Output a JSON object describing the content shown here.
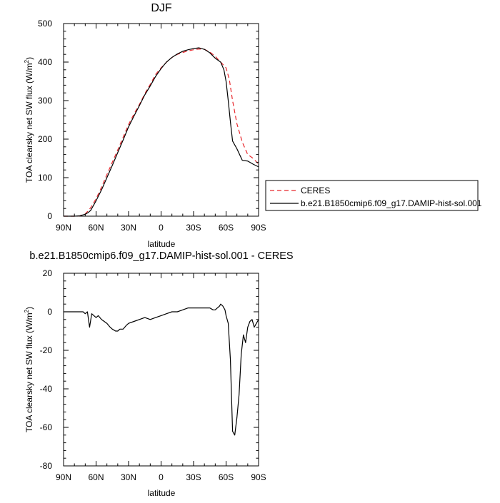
{
  "chart_data": [
    {
      "type": "line",
      "title": "DJF",
      "xlabel": "latitude",
      "ylabel": "TOA clearsky net SW flux (W/m",
      "ylabel_sup": "2",
      "ylabel_close": ")",
      "xlim": [
        -90,
        90
      ],
      "ylim": [
        0,
        500
      ],
      "x_ticks": [
        -90,
        -60,
        -30,
        0,
        30,
        60,
        90
      ],
      "x_tick_labels": [
        "90N",
        "60N",
        "30N",
        "0",
        "30S",
        "60S",
        "90S"
      ],
      "y_ticks": [
        0,
        100,
        200,
        300,
        400,
        500
      ],
      "y_tick_labels": [
        "0",
        "100",
        "200",
        "300",
        "400",
        "500"
      ],
      "grid": false,
      "legend_position": "right",
      "series": [
        {
          "name": "CERES",
          "color": "#e8262b",
          "dash": true,
          "x": [
            -90,
            -80,
            -75,
            -70,
            -67,
            -65,
            -60,
            -55,
            -50,
            -45,
            -40,
            -35,
            -30,
            -25,
            -20,
            -15,
            -10,
            -5,
            0,
            5,
            10,
            15,
            20,
            25,
            30,
            35,
            40,
            45,
            50,
            55,
            60,
            63,
            66,
            70,
            75,
            80,
            85,
            90
          ],
          "y": [
            0,
            0,
            1,
            6,
            15,
            22,
            45,
            75,
            108,
            140,
            172,
            205,
            238,
            265,
            290,
            318,
            342,
            368,
            385,
            400,
            412,
            420,
            425,
            429,
            432,
            434,
            433,
            426,
            415,
            400,
            385,
            355,
            300,
            240,
            192,
            160,
            150,
            135
          ]
        },
        {
          "name": "b.e21.B1850cmip6.f09_g17.DAMIP-hist-sol.001",
          "color": "#000000",
          "dash": false,
          "x": [
            -90,
            -80,
            -75,
            -70,
            -67,
            -65,
            -60,
            -55,
            -50,
            -45,
            -40,
            -35,
            -30,
            -25,
            -20,
            -15,
            -10,
            -5,
            0,
            5,
            10,
            15,
            20,
            25,
            30,
            35,
            40,
            45,
            50,
            55,
            58,
            60,
            62,
            64,
            66,
            70,
            75,
            80,
            85,
            90
          ],
          "y": [
            0,
            0,
            1,
            5,
            10,
            15,
            40,
            68,
            100,
            132,
            165,
            198,
            232,
            260,
            287,
            315,
            338,
            363,
            383,
            400,
            412,
            421,
            428,
            432,
            435,
            437,
            433,
            424,
            410,
            400,
            380,
            350,
            300,
            245,
            195,
            175,
            145,
            143,
            135,
            128
          ]
        }
      ]
    },
    {
      "type": "line",
      "title": "b.e21.B1850cmip6.f09_g17.DAMIP-hist-sol.001 - CERES",
      "xlabel": "latitude",
      "ylabel": "TOA clearsky net SW flux (W/m",
      "ylabel_sup": "2",
      "ylabel_close": ")",
      "xlim": [
        -90,
        90
      ],
      "ylim": [
        -80,
        20
      ],
      "x_ticks": [
        -90,
        -60,
        -30,
        0,
        30,
        60,
        90
      ],
      "x_tick_labels": [
        "90N",
        "60N",
        "30N",
        "0",
        "30S",
        "60S",
        "90S"
      ],
      "y_ticks": [
        -80,
        -60,
        -40,
        -20,
        0,
        20
      ],
      "y_tick_labels": [
        "-80",
        "-60",
        "-40",
        "-20",
        "0",
        "20"
      ],
      "grid": false,
      "series": [
        {
          "color": "#000000",
          "dash": false,
          "x": [
            -90,
            -75,
            -72,
            -70,
            -68,
            -66,
            -64,
            -62,
            -60,
            -58,
            -55,
            -50,
            -47,
            -45,
            -42,
            -40,
            -38,
            -35,
            -32,
            -30,
            -25,
            -20,
            -15,
            -10,
            -5,
            0,
            5,
            10,
            15,
            20,
            25,
            30,
            35,
            40,
            45,
            48,
            50,
            52,
            54,
            55,
            57,
            59,
            60,
            62,
            64,
            66,
            68,
            70,
            72,
            74,
            76,
            78,
            80,
            82,
            84,
            86,
            88,
            90
          ],
          "y": [
            0,
            0,
            0,
            -1,
            0,
            -8,
            -1,
            -2,
            -3,
            -2,
            -4,
            -6,
            -8,
            -9,
            -10,
            -10,
            -9,
            -9,
            -7,
            -6,
            -5,
            -4,
            -3,
            -4,
            -3,
            -2,
            -1,
            0,
            0,
            1,
            2,
            2,
            2,
            2,
            2,
            1,
            1,
            2,
            3,
            4,
            3,
            1,
            -2,
            -6,
            -25,
            -62,
            -64,
            -55,
            -43,
            -22,
            -12,
            -16,
            -8,
            -5,
            -4,
            -8,
            -6,
            -4
          ]
        }
      ]
    }
  ]
}
